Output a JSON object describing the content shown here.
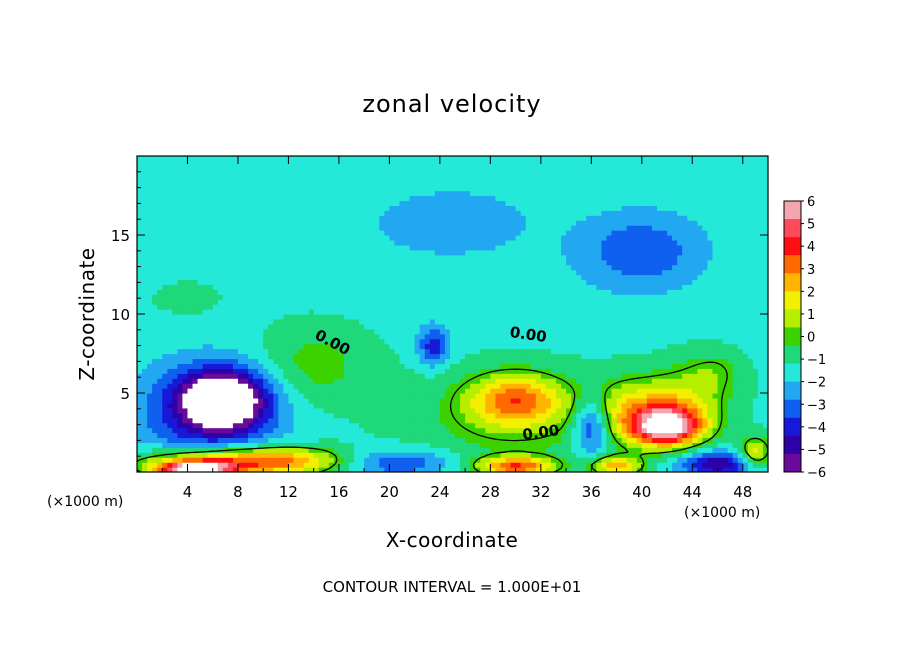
{
  "chart_data": {
    "type": "heatmap",
    "title": "zonal velocity",
    "xlabel": "X-coordinate",
    "ylabel": "Z-coordinate",
    "x_unit": "(×1000 m)",
    "xlim": [
      0,
      50
    ],
    "ylim": [
      0,
      20
    ],
    "x_ticks": [
      4,
      8,
      12,
      16,
      20,
      24,
      28,
      32,
      36,
      40,
      44,
      48
    ],
    "y_ticks": [
      5,
      10,
      15
    ],
    "footer": "CONTOUR INTERVAL = 1.000E+01",
    "contour_label": "0.00",
    "colorbar": {
      "ticks": [
        6,
        5,
        4,
        3,
        2,
        1,
        0,
        -1,
        -2,
        -3,
        -4,
        -5,
        -6
      ],
      "tick_labels": [
        "6",
        "5",
        "4",
        "3",
        "2",
        "1",
        "0",
        "−1",
        "−2",
        "−3",
        "−4",
        "−5",
        "−6"
      ],
      "colors": [
        "#f4a6b0",
        "#ff4a5a",
        "#ff1010",
        "#ff6a00",
        "#ffb400",
        "#f2f000",
        "#b6ee00",
        "#3cd200",
        "#1ed87a",
        "#24e8d8",
        "#22a8f0",
        "#1060f0",
        "#1818d8",
        "#2e00a8",
        "#6a0a9a"
      ]
    },
    "background_value": -1.4,
    "field_features": [
      {
        "x": 14,
        "z": 6.8,
        "rx": 4.5,
        "rz": 2.6,
        "value": 1.2
      },
      {
        "x": 24,
        "z": 14,
        "rx": 12,
        "rz": 4,
        "value": -0.5
      },
      {
        "x": 30,
        "z": 4.6,
        "rx": 3.6,
        "rz": 1.6,
        "value": 3.6
      },
      {
        "x": 29.5,
        "z": 3.4,
        "rx": 8,
        "rz": 3,
        "value": 1.2
      },
      {
        "x": 42,
        "z": 2.9,
        "rx": 2.8,
        "rz": 1.2,
        "value": 6.5
      },
      {
        "x": 40.5,
        "z": 3.9,
        "rx": 4.5,
        "rz": 2,
        "value": 3.2
      },
      {
        "x": 44.5,
        "z": 5.5,
        "rx": 3,
        "rz": 2,
        "value": 1.0
      },
      {
        "x": 6.8,
        "z": 4.6,
        "rx": 3.3,
        "rz": 1.8,
        "value": -6.6
      },
      {
        "x": 5.5,
        "z": 3.5,
        "rx": 6,
        "rz": 3.5,
        "value": -2.6
      },
      {
        "x": 9,
        "z": 0.7,
        "rx": 8,
        "rz": 0.9,
        "value": 5.6
      },
      {
        "x": 4.5,
        "z": 0.2,
        "rx": 3,
        "rz": 0.5,
        "value": 7
      },
      {
        "x": 23.5,
        "z": 8,
        "rx": 1.2,
        "rz": 1.2,
        "value": -3
      },
      {
        "x": 36,
        "z": 3,
        "rx": 1.5,
        "rz": 1.8,
        "value": -3.5
      },
      {
        "x": 20,
        "z": 0.6,
        "rx": 5,
        "rz": 0.9,
        "value": -3
      },
      {
        "x": 30,
        "z": 0.4,
        "rx": 3,
        "rz": 0.6,
        "value": 4.5
      },
      {
        "x": 38,
        "z": 0.4,
        "rx": 2,
        "rz": 0.6,
        "value": 3.5
      },
      {
        "x": 46,
        "z": 0.5,
        "rx": 3,
        "rz": 0.8,
        "value": -4
      },
      {
        "x": 49,
        "z": 1.2,
        "rx": 1.2,
        "rz": 1,
        "value": 3
      },
      {
        "x": 4,
        "z": 11,
        "rx": 2.5,
        "rz": 1,
        "value": 0.5
      },
      {
        "x": 46,
        "z": 6.5,
        "rx": 2,
        "rz": 1.2,
        "value": 0.6
      },
      {
        "x": 25,
        "z": 16,
        "rx": 6,
        "rz": 2,
        "value": -1.2
      },
      {
        "x": 40,
        "z": 14,
        "rx": 5,
        "rz": 2.5,
        "value": -2.2
      }
    ]
  }
}
